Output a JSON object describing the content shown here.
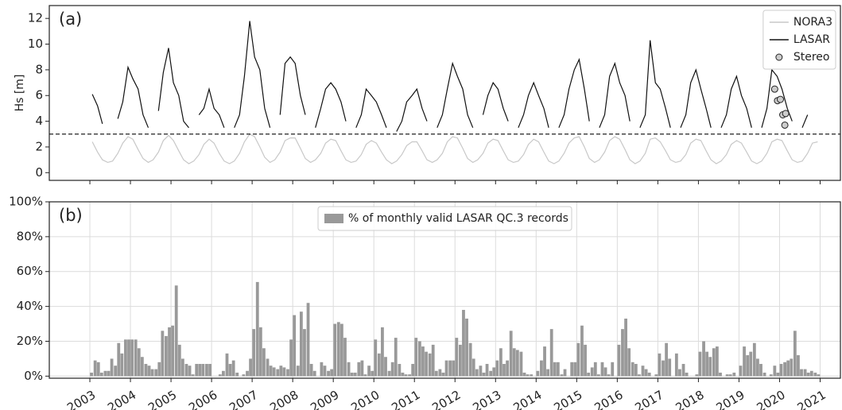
{
  "chart_data": [
    {
      "type": "line",
      "panel_label": "(a)",
      "ylabel": "Hs [m]",
      "xlim": [
        2002.0,
        2021.5
      ],
      "ylim": [
        -0.6,
        13
      ],
      "grid": false,
      "xtick_labels": false,
      "legend": "upper right",
      "xticks": [
        2003,
        2004,
        2005,
        2006,
        2007,
        2008,
        2009,
        2010,
        2011,
        2012,
        2013,
        2014,
        2015,
        2016,
        2017,
        2018,
        2019,
        2020,
        2021
      ],
      "yticks": [
        0,
        2,
        4,
        6,
        8,
        10,
        12
      ],
      "hline": 3,
      "x": [
        2003.06,
        2003.19,
        2003.31,
        2003.44,
        2003.56,
        2003.69,
        2003.81,
        2003.94,
        2004.06,
        2004.19,
        2004.31,
        2004.44,
        2004.56,
        2004.69,
        2004.81,
        2004.94,
        2005.06,
        2005.19,
        2005.31,
        2005.44,
        2005.56,
        2005.69,
        2005.81,
        2005.94,
        2006.06,
        2006.19,
        2006.31,
        2006.44,
        2006.56,
        2006.69,
        2006.81,
        2006.94,
        2007.06,
        2007.19,
        2007.31,
        2007.44,
        2007.56,
        2007.69,
        2007.81,
        2007.94,
        2008.06,
        2008.19,
        2008.31,
        2008.44,
        2008.56,
        2008.69,
        2008.81,
        2008.94,
        2009.06,
        2009.19,
        2009.31,
        2009.44,
        2009.56,
        2009.69,
        2009.81,
        2009.94,
        2010.06,
        2010.19,
        2010.31,
        2010.44,
        2010.56,
        2010.69,
        2010.81,
        2010.94,
        2011.06,
        2011.19,
        2011.31,
        2011.44,
        2011.56,
        2011.69,
        2011.81,
        2011.94,
        2012.06,
        2012.19,
        2012.31,
        2012.44,
        2012.56,
        2012.69,
        2012.81,
        2012.94,
        2013.06,
        2013.19,
        2013.31,
        2013.44,
        2013.56,
        2013.69,
        2013.81,
        2013.94,
        2014.06,
        2014.19,
        2014.31,
        2014.44,
        2014.56,
        2014.69,
        2014.81,
        2014.94,
        2015.06,
        2015.19,
        2015.31,
        2015.44,
        2015.56,
        2015.69,
        2015.81,
        2015.94,
        2016.06,
        2016.19,
        2016.31,
        2016.44,
        2016.56,
        2016.69,
        2016.81,
        2016.94,
        2017.06,
        2017.19,
        2017.31,
        2017.44,
        2017.56,
        2017.69,
        2017.81,
        2017.94,
        2018.06,
        2018.19,
        2018.31,
        2018.44,
        2018.56,
        2018.69,
        2018.81,
        2018.94,
        2019.06,
        2019.19,
        2019.31,
        2019.44,
        2019.56,
        2019.69,
        2019.81,
        2019.94,
        2020.06,
        2020.19,
        2020.31,
        2020.44,
        2020.56,
        2020.69,
        2020.81,
        2020.94
      ],
      "series": [
        {
          "name": "NORA3",
          "color": "#c8c8c8",
          "values": [
            2.4,
            1.6,
            1.0,
            0.8,
            0.9,
            1.5,
            2.3,
            2.8,
            2.6,
            1.8,
            1.1,
            0.8,
            1.0,
            1.6,
            2.5,
            2.9,
            2.5,
            1.7,
            1.0,
            0.7,
            0.9,
            1.4,
            2.2,
            2.6,
            2.3,
            1.5,
            0.9,
            0.7,
            0.9,
            1.5,
            2.4,
            3.0,
            2.8,
            2.0,
            1.2,
            0.8,
            1.0,
            1.6,
            2.5,
            2.7,
            2.7,
            1.9,
            1.1,
            0.8,
            1.0,
            1.5,
            2.3,
            2.6,
            2.5,
            1.7,
            1.0,
            0.8,
            0.9,
            1.4,
            2.2,
            2.5,
            2.3,
            1.6,
            1.0,
            0.7,
            0.9,
            1.4,
            2.1,
            2.4,
            2.4,
            1.7,
            1.0,
            0.8,
            1.0,
            1.5,
            2.4,
            2.8,
            2.7,
            1.9,
            1.1,
            0.8,
            1.0,
            1.5,
            2.3,
            2.6,
            2.5,
            1.7,
            1.0,
            0.8,
            0.9,
            1.4,
            2.2,
            2.6,
            2.4,
            1.6,
            0.9,
            0.7,
            0.9,
            1.5,
            2.3,
            2.7,
            2.8,
            2.0,
            1.1,
            0.8,
            1.0,
            1.6,
            2.5,
            2.8,
            2.6,
            1.8,
            1.0,
            0.7,
            0.9,
            1.5,
            2.6,
            2.7,
            2.4,
            1.7,
            1.0,
            0.8,
            0.9,
            1.4,
            2.3,
            2.6,
            2.5,
            1.7,
            1.0,
            0.7,
            0.9,
            1.4,
            2.2,
            2.5,
            2.3,
            1.6,
            0.9,
            0.7,
            0.9,
            1.5,
            2.4,
            2.6,
            2.5,
            1.7,
            1.0,
            0.8,
            0.9,
            1.5,
            2.3,
            2.4
          ]
        },
        {
          "name": "LASAR",
          "color": "#111111",
          "values": [
            6.1,
            5.2,
            3.8,
            null,
            null,
            4.2,
            5.5,
            8.2,
            7.3,
            6.5,
            4.5,
            3.5,
            null,
            4.8,
            7.8,
            9.7,
            7.0,
            6.0,
            4.0,
            3.5,
            null,
            4.5,
            5.0,
            6.5,
            5.0,
            4.5,
            3.5,
            null,
            3.5,
            4.5,
            7.5,
            11.8,
            9.0,
            8.0,
            5.0,
            3.5,
            null,
            4.5,
            8.5,
            9.0,
            8.5,
            6.0,
            4.5,
            null,
            3.5,
            5.0,
            6.5,
            7.0,
            6.5,
            5.5,
            4.0,
            null,
            3.5,
            4.5,
            6.5,
            6.0,
            5.5,
            4.5,
            3.5,
            null,
            3.2,
            4.0,
            5.5,
            6.0,
            6.5,
            5.0,
            4.0,
            null,
            3.5,
            4.5,
            6.5,
            8.5,
            7.5,
            6.5,
            4.5,
            3.5,
            null,
            4.5,
            6.0,
            7.0,
            6.5,
            5.0,
            4.0,
            null,
            3.5,
            4.5,
            6.0,
            7.0,
            6.0,
            5.0,
            3.5,
            null,
            3.5,
            4.5,
            6.5,
            8.0,
            8.8,
            6.5,
            4.0,
            null,
            3.5,
            4.5,
            7.5,
            8.5,
            7.0,
            6.0,
            4.0,
            null,
            3.5,
            4.5,
            10.3,
            7.0,
            6.5,
            5.0,
            3.5,
            null,
            3.5,
            4.5,
            7.0,
            8.0,
            6.5,
            5.0,
            3.5,
            null,
            3.5,
            4.5,
            6.5,
            7.5,
            6.0,
            5.0,
            3.5,
            null,
            3.5,
            5.0,
            8.0,
            7.5,
            6.5,
            5.0,
            4.0,
            null,
            3.5,
            4.5,
            null,
            null
          ]
        }
      ],
      "points": {
        "name": "Stereo",
        "color": "#cccccc",
        "x": [
          2019.88,
          2019.95,
          2020.02,
          2020.08,
          2020.15,
          2020.13
        ],
        "y": [
          6.5,
          5.6,
          5.7,
          4.5,
          4.6,
          3.7
        ]
      }
    },
    {
      "type": "bar",
      "panel_label": "(b)",
      "xlim": [
        2002.0,
        2021.5
      ],
      "ylim": [
        -1.2,
        100
      ],
      "grid": true,
      "xtick_labels": true,
      "legend": "upper center",
      "xticks": [
        2003,
        2004,
        2005,
        2006,
        2007,
        2008,
        2009,
        2010,
        2011,
        2012,
        2013,
        2014,
        2015,
        2016,
        2017,
        2018,
        2019,
        2020,
        2021
      ],
      "yticks": [
        {
          "value": 0,
          "label": "0%"
        },
        {
          "value": 20,
          "label": "20%"
        },
        {
          "value": 40,
          "label": "40%"
        },
        {
          "value": 60,
          "label": "60%"
        },
        {
          "value": 80,
          "label": "80%"
        },
        {
          "value": 100,
          "label": "100%"
        }
      ],
      "x": [
        2003.04,
        2003.13,
        2003.21,
        2003.29,
        2003.38,
        2003.46,
        2003.54,
        2003.63,
        2003.71,
        2003.79,
        2003.88,
        2003.96,
        2004.04,
        2004.13,
        2004.21,
        2004.29,
        2004.38,
        2004.46,
        2004.54,
        2004.63,
        2004.71,
        2004.79,
        2004.88,
        2004.96,
        2005.04,
        2005.13,
        2005.21,
        2005.29,
        2005.38,
        2005.46,
        2005.54,
        2005.63,
        2005.71,
        2005.79,
        2005.88,
        2005.96,
        2006.04,
        2006.13,
        2006.21,
        2006.29,
        2006.38,
        2006.46,
        2006.54,
        2006.63,
        2006.71,
        2006.79,
        2006.88,
        2006.96,
        2007.04,
        2007.13,
        2007.21,
        2007.29,
        2007.38,
        2007.46,
        2007.54,
        2007.63,
        2007.71,
        2007.79,
        2007.88,
        2007.96,
        2008.04,
        2008.13,
        2008.21,
        2008.29,
        2008.38,
        2008.46,
        2008.54,
        2008.63,
        2008.71,
        2008.79,
        2008.88,
        2008.96,
        2009.04,
        2009.13,
        2009.21,
        2009.29,
        2009.38,
        2009.46,
        2009.54,
        2009.63,
        2009.71,
        2009.79,
        2009.88,
        2009.96,
        2010.04,
        2010.13,
        2010.21,
        2010.29,
        2010.38,
        2010.46,
        2010.54,
        2010.63,
        2010.71,
        2010.79,
        2010.88,
        2010.96,
        2011.04,
        2011.13,
        2011.21,
        2011.29,
        2011.38,
        2011.46,
        2011.54,
        2011.63,
        2011.71,
        2011.79,
        2011.88,
        2011.96,
        2012.04,
        2012.13,
        2012.21,
        2012.29,
        2012.38,
        2012.46,
        2012.54,
        2012.63,
        2012.71,
        2012.79,
        2012.88,
        2012.96,
        2013.04,
        2013.13,
        2013.21,
        2013.29,
        2013.38,
        2013.46,
        2013.54,
        2013.63,
        2013.71,
        2013.79,
        2013.88,
        2013.96,
        2014.04,
        2014.13,
        2014.21,
        2014.29,
        2014.38,
        2014.46,
        2014.54,
        2014.63,
        2014.71,
        2014.79,
        2014.88,
        2014.96,
        2015.04,
        2015.13,
        2015.21,
        2015.29,
        2015.38,
        2015.46,
        2015.54,
        2015.63,
        2015.71,
        2015.79,
        2015.88,
        2015.96,
        2016.04,
        2016.13,
        2016.21,
        2016.29,
        2016.38,
        2016.46,
        2016.54,
        2016.63,
        2016.71,
        2016.79,
        2016.88,
        2016.96,
        2017.04,
        2017.13,
        2017.21,
        2017.29,
        2017.38,
        2017.46,
        2017.54,
        2017.63,
        2017.71,
        2017.79,
        2017.88,
        2017.96,
        2018.04,
        2018.13,
        2018.21,
        2018.29,
        2018.38,
        2018.46,
        2018.54,
        2018.63,
        2018.71,
        2018.79,
        2018.88,
        2018.96,
        2019.04,
        2019.13,
        2019.21,
        2019.29,
        2019.38,
        2019.46,
        2019.54,
        2019.63,
        2019.71,
        2019.79,
        2019.88,
        2019.96,
        2020.04,
        2020.13,
        2020.21,
        2020.29,
        2020.38,
        2020.46,
        2020.54,
        2020.63,
        2020.71,
        2020.79,
        2020.88,
        2020.96
      ],
      "series": [
        {
          "name": "% of monthly valid LASAR QC.3 records",
          "color": "#999999",
          "values": [
            2,
            9,
            8,
            2,
            3,
            3,
            10,
            6,
            19,
            13,
            21,
            21,
            21,
            21,
            16,
            11,
            7,
            6,
            4,
            4,
            8,
            26,
            23,
            28,
            29,
            52,
            18,
            10,
            7,
            6,
            1,
            7,
            7,
            7,
            7,
            7,
            0,
            0,
            1,
            3,
            13,
            7,
            9,
            2,
            0,
            1,
            3,
            10,
            27,
            54,
            28,
            16,
            10,
            6,
            5,
            4,
            6,
            5,
            4,
            21,
            35,
            6,
            37,
            27,
            42,
            7,
            3,
            0,
            8,
            6,
            3,
            4,
            30,
            31,
            30,
            22,
            8,
            2,
            2,
            8,
            9,
            1,
            6,
            3,
            21,
            13,
            28,
            11,
            3,
            8,
            22,
            7,
            2,
            1,
            1,
            7,
            22,
            20,
            17,
            14,
            13,
            18,
            3,
            4,
            2,
            9,
            9,
            9,
            22,
            18,
            38,
            33,
            19,
            10,
            4,
            6,
            2,
            7,
            3,
            5,
            9,
            16,
            7,
            9,
            26,
            16,
            15,
            14,
            2,
            1,
            1,
            0,
            3,
            9,
            17,
            4,
            27,
            8,
            8,
            1,
            4,
            0,
            8,
            8,
            19,
            29,
            18,
            2,
            5,
            8,
            1,
            8,
            5,
            1,
            8,
            0,
            18,
            27,
            33,
            16,
            8,
            7,
            1,
            6,
            4,
            2,
            0,
            1,
            13,
            9,
            19,
            10,
            0,
            13,
            4,
            7,
            2,
            0,
            0,
            1,
            14,
            20,
            14,
            11,
            16,
            17,
            2,
            0,
            1,
            1,
            2,
            0,
            6,
            17,
            12,
            14,
            19,
            10,
            7,
            2,
            0,
            1,
            6,
            2,
            7,
            8,
            9,
            10,
            26,
            12,
            4,
            4,
            2,
            3,
            2,
            1
          ]
        }
      ]
    }
  ]
}
